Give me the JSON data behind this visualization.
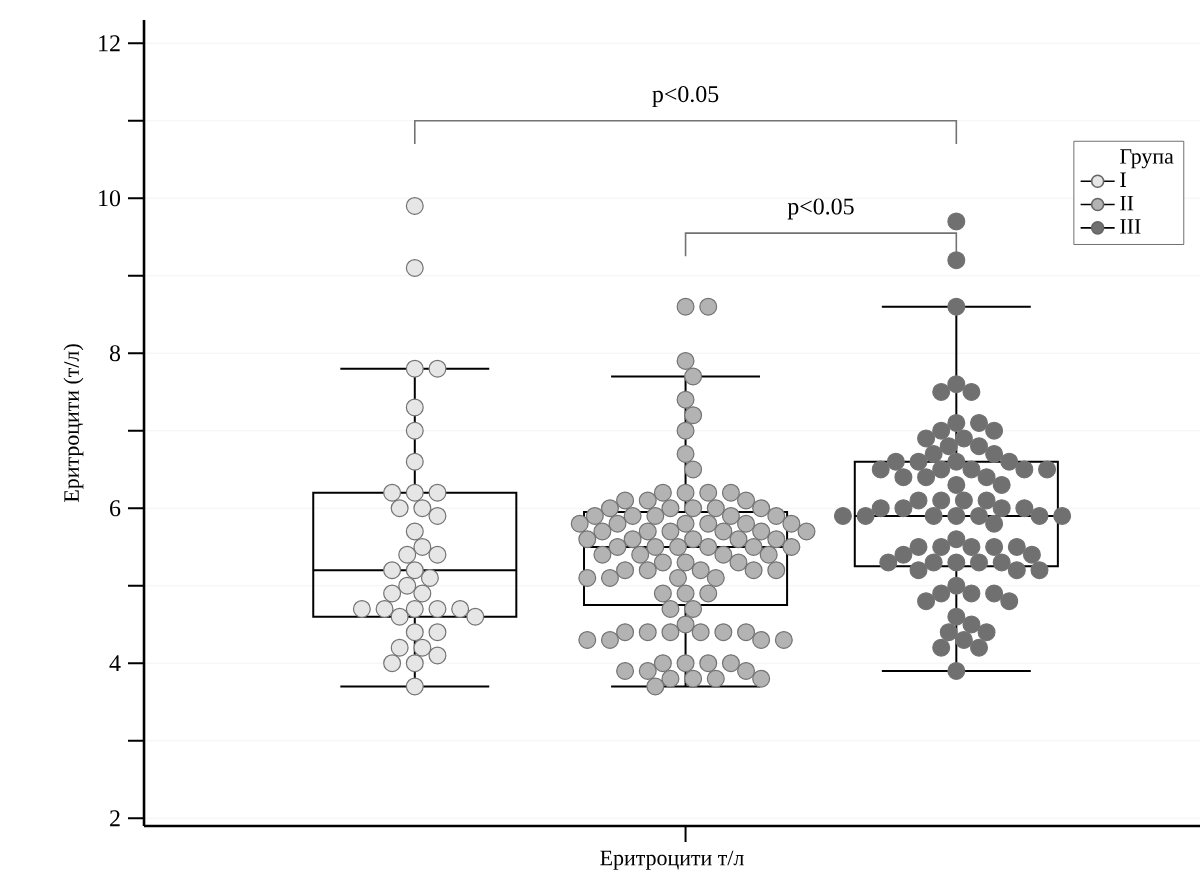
{
  "chart_data": {
    "type": "box",
    "xlabel": "Еритроцити т/л",
    "ylabel": "Еритроцити (т/л)",
    "legend_title": "Група",
    "legend": "top right",
    "grid": "y",
    "tick_labels": "y",
    "categories": [
      null
    ],
    "ylim": [
      1.9,
      12.3
    ],
    "yticks": [
      2,
      {
        "value": 3,
        "label": null
      },
      4,
      {
        "value": 5,
        "label": null
      },
      6,
      {
        "value": 7,
        "label": null
      },
      8,
      {
        "value": 9,
        "label": null
      },
      10,
      {
        "value": 11,
        "label": null
      },
      12
    ],
    "annotations": [
      "p<0.05",
      "p<0.05"
    ],
    "series": [
      {
        "color": "#000000",
        "boxes": [
          {
            "low": 3.7,
            "q1": 4.6,
            "median": 5.2,
            "q3": 6.2,
            "high": 7.8
          }
        ]
      },
      {
        "color": "#000000",
        "boxes": [
          {
            "low": 3.7,
            "q1": 4.75,
            "median": 5.5,
            "q3": 5.95,
            "high": 7.7
          }
        ]
      },
      {
        "color": "#000000",
        "boxes": [
          {
            "low": 3.9,
            "q1": 5.25,
            "median": 5.9,
            "q3": 6.6,
            "high": 8.6
          }
        ]
      },
      {
        "name": "I",
        "type": "scatter",
        "color": "#e6e6e6",
        "x": [
          null,
          null,
          null,
          null,
          null,
          null,
          null,
          null,
          null,
          null,
          null,
          null,
          null,
          null,
          null,
          null,
          null,
          null,
          null,
          null,
          null,
          null,
          null,
          null,
          null,
          null,
          null,
          null,
          null,
          null,
          null,
          null,
          null,
          null,
          null,
          null,
          null,
          null
        ],
        "values": [
          9.9,
          9.1,
          7.8,
          7.8,
          7.3,
          7.0,
          6.6,
          6.2,
          6.2,
          6.2,
          6.0,
          6.0,
          5.9,
          5.7,
          5.5,
          5.4,
          5.4,
          5.2,
          5.2,
          5.1,
          5.0,
          4.9,
          4.9,
          4.7,
          4.7,
          4.7,
          4.7,
          4.7,
          4.6,
          4.6,
          4.4,
          4.4,
          4.2,
          4.2,
          4.1,
          4.0,
          4.0,
          3.7
        ]
      },
      {
        "name": "II",
        "type": "scatter",
        "color": "#b3b3b3",
        "x": [
          null,
          null,
          null,
          null,
          null,
          null,
          null,
          null,
          null,
          null,
          null,
          null,
          null,
          null,
          null,
          null,
          null,
          null,
          null,
          null,
          null,
          null,
          null,
          null,
          null,
          null,
          null,
          null,
          null,
          null,
          null,
          null,
          null,
          null,
          null,
          null,
          null,
          null,
          null,
          null,
          null,
          null,
          null,
          null,
          null,
          null,
          null,
          null,
          null,
          null,
          null,
          null,
          null,
          null,
          null,
          null,
          null,
          null,
          null,
          null,
          null,
          null,
          null,
          null,
          null,
          null,
          null,
          null,
          null,
          null,
          null,
          null,
          null,
          null,
          null,
          null,
          null,
          null,
          null,
          null,
          null,
          null,
          null,
          null,
          null,
          null,
          null,
          null,
          null,
          null,
          null,
          null,
          null
        ],
        "values": [
          8.6,
          8.6,
          7.9,
          7.7,
          7.4,
          7.2,
          7.0,
          6.7,
          6.5,
          6.2,
          6.2,
          6.2,
          6.2,
          6.1,
          6.1,
          6.1,
          6.0,
          6.0,
          6.0,
          6.0,
          6.0,
          5.9,
          5.9,
          5.9,
          5.9,
          5.9,
          5.8,
          5.8,
          5.8,
          5.8,
          5.8,
          5.8,
          5.7,
          5.7,
          5.7,
          5.7,
          5.7,
          5.7,
          5.6,
          5.6,
          5.6,
          5.6,
          5.6,
          5.5,
          5.5,
          5.5,
          5.5,
          5.5,
          5.5,
          5.4,
          5.4,
          5.4,
          5.4,
          5.3,
          5.3,
          5.3,
          5.2,
          5.2,
          5.2,
          5.2,
          5.2,
          5.1,
          5.1,
          5.1,
          5.1,
          4.9,
          4.9,
          4.9,
          4.7,
          4.7,
          4.5,
          4.4,
          4.4,
          4.4,
          4.4,
          4.4,
          4.4,
          4.3,
          4.3,
          4.3,
          4.3,
          4.0,
          4.0,
          4.0,
          4.0,
          3.9,
          3.9,
          3.9,
          3.8,
          3.8,
          3.8,
          3.8,
          3.7
        ]
      },
      {
        "name": "III",
        "type": "scatter",
        "color": "#707070",
        "x": [
          null,
          null,
          null,
          null,
          null,
          null,
          null,
          null,
          null,
          null,
          null,
          null,
          null,
          null,
          null,
          null,
          null,
          null,
          null,
          null,
          null,
          null,
          null,
          null,
          null,
          null,
          null,
          null,
          null,
          null,
          null,
          null,
          null,
          null,
          null,
          null,
          null,
          null,
          null,
          null,
          null,
          null,
          null,
          null,
          null,
          null,
          null,
          null,
          null,
          null,
          null,
          null,
          null,
          null,
          null,
          null,
          null,
          null,
          null,
          null,
          null,
          null,
          null,
          null,
          null,
          null,
          null,
          null,
          null,
          null,
          null,
          null,
          null,
          null,
          null,
          null
        ],
        "values": [
          9.7,
          9.2,
          8.6,
          7.6,
          7.5,
          7.5,
          7.1,
          7.1,
          7.0,
          7.0,
          6.9,
          6.9,
          6.8,
          6.8,
          6.7,
          6.7,
          6.6,
          6.6,
          6.6,
          6.6,
          6.5,
          6.5,
          6.5,
          6.5,
          6.5,
          6.4,
          6.4,
          6.4,
          6.3,
          6.3,
          6.1,
          6.1,
          6.1,
          6.1,
          6.0,
          6.0,
          6.0,
          6.0,
          5.9,
          5.9,
          5.9,
          5.9,
          5.9,
          5.9,
          5.9,
          5.8,
          5.6,
          5.5,
          5.5,
          5.5,
          5.5,
          5.5,
          5.4,
          5.4,
          5.3,
          5.3,
          5.3,
          5.3,
          5.3,
          5.2,
          5.2,
          5.2,
          5.0,
          4.9,
          4.9,
          4.9,
          4.8,
          4.8,
          4.6,
          4.5,
          4.4,
          4.4,
          4.3,
          4.2,
          4.2,
          3.9
        ]
      }
    ]
  }
}
